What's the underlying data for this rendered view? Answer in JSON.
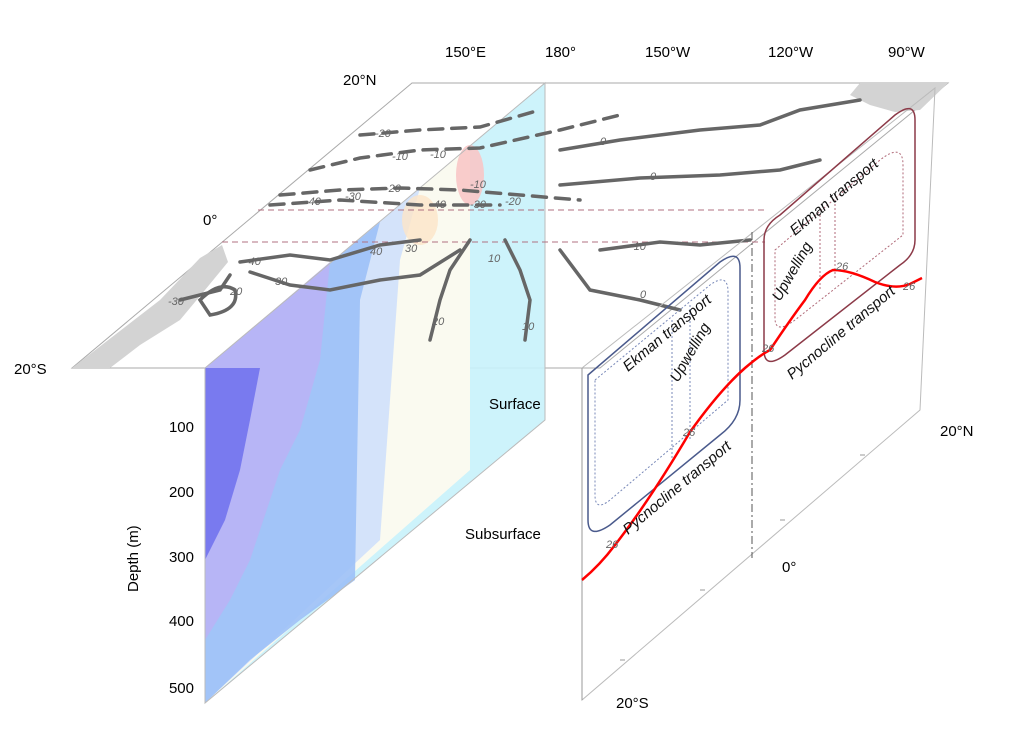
{
  "axes": {
    "longitudes": [
      "150°E",
      "180°",
      "150°W",
      "120°W",
      "90°W"
    ],
    "latitudes_top": {
      "north": "20°N",
      "equator": "0°",
      "south": "20°S"
    },
    "latitudes_side": {
      "north": "20°N",
      "equator": "0°",
      "south": "20°S"
    },
    "depth_label": "Depth (m)",
    "depth_ticks": [
      "100",
      "200",
      "300",
      "400",
      "500"
    ]
  },
  "layers": {
    "surface": "Surface",
    "subsurface": "Subsurface"
  },
  "cells": {
    "south": {
      "ekman": "Ekman transport",
      "upwelling": "Upwelling",
      "pycnocline": "Pycnocline transport"
    },
    "north": {
      "ekman": "Ekman transport",
      "upwelling": "Upwelling",
      "pycnocline": "Pycnocline transport"
    }
  },
  "contour_labels": [
    "-20",
    "-10",
    "-10",
    "-10",
    "-40",
    "-30",
    "-20",
    "-40",
    "-30",
    "-20",
    "-10",
    "0",
    "0",
    "0",
    "40",
    "30",
    "30",
    "20",
    "20",
    "10",
    "10",
    "-40",
    "-30"
  ],
  "isopycnal_label": "26",
  "colors": {
    "south_cell": "#4a5a8c",
    "north_cell": "#8c3a48",
    "pycnocline": "#ff0000",
    "contour": "#666666",
    "land": "#d3d3d3"
  }
}
